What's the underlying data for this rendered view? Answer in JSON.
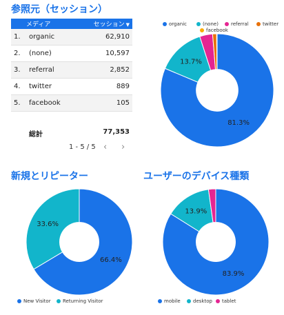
{
  "referral_section": {
    "title": "参照元（セッション）",
    "table": {
      "headers": {
        "medium": "メディア",
        "sessions": "セッション"
      },
      "rows": [
        {
          "index": "1.",
          "medium": "organic",
          "sessions": "62,910"
        },
        {
          "index": "2.",
          "medium": "(none)",
          "sessions": "10,597"
        },
        {
          "index": "3.",
          "medium": "referral",
          "sessions": "2,852"
        },
        {
          "index": "4.",
          "medium": "twitter",
          "sessions": "889"
        },
        {
          "index": "5.",
          "medium": "facebook",
          "sessions": "105"
        }
      ],
      "total_label": "総計",
      "total_value": "77,353",
      "pager": "1 - 5 / 5"
    }
  },
  "new_returning_section": {
    "title": "新規とリピーター"
  },
  "device_section": {
    "title": "ユーザーのデバイス種類"
  },
  "chart_data": [
    {
      "type": "pie",
      "legend": "top-right",
      "categories": [
        "organic",
        "(none)",
        "referral",
        "twitter",
        "facebook"
      ],
      "values": [
        62910,
        10597,
        2852,
        889,
        105
      ],
      "colors": [
        "#1a73e8",
        "#12b5cb",
        "#e52592",
        "#e8710a",
        "#f9ab00"
      ],
      "labels": [
        "81.3%",
        "13.7%",
        "",
        "",
        ""
      ]
    },
    {
      "type": "pie",
      "legend": "bottom-left",
      "categories": [
        "New Visitor",
        "Returning Visitor"
      ],
      "values": [
        66.4,
        33.6
      ],
      "colors": [
        "#1a73e8",
        "#12b5cb"
      ],
      "labels": [
        "66.4%",
        "33.6%"
      ]
    },
    {
      "type": "pie",
      "legend": "bottom-left",
      "categories": [
        "mobile",
        "desktop",
        "tablet"
      ],
      "values": [
        83.9,
        13.9,
        2.2
      ],
      "colors": [
        "#1a73e8",
        "#12b5cb",
        "#e52592"
      ],
      "labels": [
        "83.9%",
        "13.9%",
        ""
      ]
    }
  ]
}
